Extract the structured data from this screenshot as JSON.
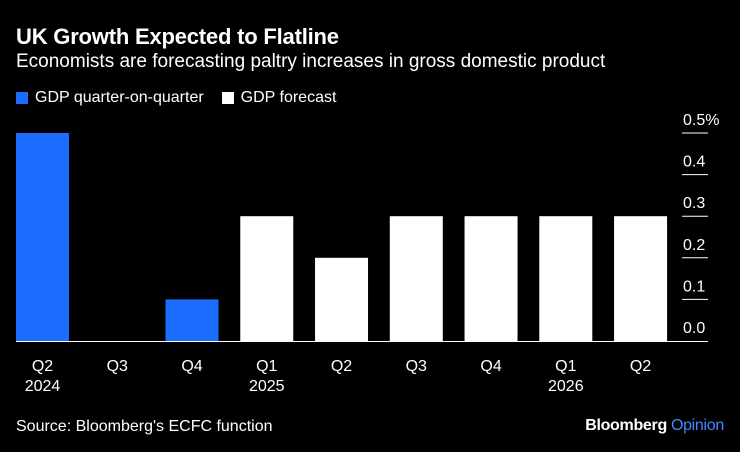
{
  "chart_data": {
    "type": "bar",
    "title": "UK Growth Expected to Flatline",
    "subtitle": "Economists are forecasting paltry increases in gross domestic product",
    "categories": [
      "Q2",
      "Q3",
      "Q4",
      "Q1",
      "Q2",
      "Q3",
      "Q4",
      "Q1",
      "Q2"
    ],
    "year_labels": [
      "2024",
      "",
      "",
      "2025",
      "",
      "",
      "",
      "2026",
      ""
    ],
    "values": [
      0.5,
      0.0,
      0.1,
      0.3,
      0.2,
      0.3,
      0.3,
      0.3,
      0.3
    ],
    "series_of_bar": [
      "actual",
      "actual",
      "actual",
      "forecast",
      "forecast",
      "forecast",
      "forecast",
      "forecast",
      "forecast"
    ],
    "legend": [
      {
        "name": "GDP quarter-on-quarter",
        "color": "#1a6dff"
      },
      {
        "name": "GDP forecast",
        "color": "#ffffff"
      }
    ],
    "ylim": [
      0,
      0.5
    ],
    "yticks": [
      "0.0",
      "0.1",
      "0.2",
      "0.3",
      "0.4",
      "0.5%"
    ],
    "ytick_values": [
      0.0,
      0.1,
      0.2,
      0.3,
      0.4,
      0.5
    ],
    "xlabel": "",
    "ylabel": "",
    "grid": true
  },
  "footer": {
    "source": "Source: Bloomberg's ECFC function",
    "brand_name": "Bloomberg",
    "brand_suffix": "Opinion"
  }
}
